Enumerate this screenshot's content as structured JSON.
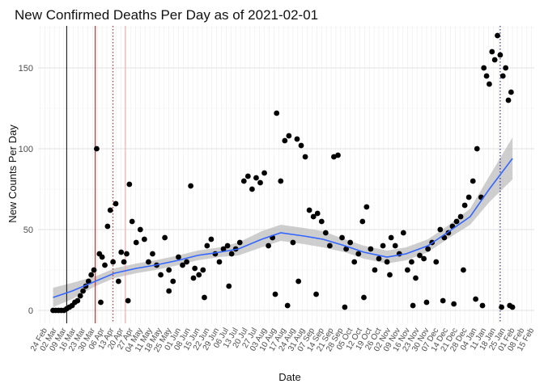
{
  "chart_data": {
    "type": "scatter",
    "title": "New Confirmed Deaths Per Day as of 2021-02-01",
    "xlabel": "Date",
    "ylabel": "New Counts Per Day",
    "x_range": [
      "2020-02-19",
      "2021-02-17"
    ],
    "ylim": [
      -8,
      176
    ],
    "y_ticks": [
      0,
      50,
      100,
      150
    ],
    "x_ticks": [
      "24 Feb",
      "02 Mar",
      "09 Mar",
      "16 Mar",
      "23 Mar",
      "30 Mar",
      "06 Apr",
      "13 Apr",
      "20 Apr",
      "27 Apr",
      "04 May",
      "11 May",
      "18 May",
      "25 May",
      "01 Jun",
      "08 Jun",
      "15 Jun",
      "22 Jun",
      "29 Jun",
      "06 Jul",
      "13 Jul",
      "20 Jul",
      "27 Jul",
      "03 Aug",
      "10 Aug",
      "17 Aug",
      "24 Aug",
      "31 Aug",
      "07 Sep",
      "14 Sep",
      "21 Sep",
      "28 Sep",
      "05 Oct",
      "12 Oct",
      "19 Oct",
      "26 Oct",
      "02 Nov",
      "09 Nov",
      "16 Nov",
      "23 Nov",
      "30 Nov",
      "07 Dec",
      "14 Dec",
      "21 Dec",
      "28 Dec",
      "04 Jan",
      "11 Jan",
      "18 Jan",
      "25 Jan",
      "01 Feb",
      "08 Feb",
      "15 Feb"
    ],
    "x_tick_dates": [
      "2020-02-24",
      "2020-03-02",
      "2020-03-09",
      "2020-03-16",
      "2020-03-23",
      "2020-03-30",
      "2020-04-06",
      "2020-04-13",
      "2020-04-20",
      "2020-04-27",
      "2020-05-04",
      "2020-05-11",
      "2020-05-18",
      "2020-05-25",
      "2020-06-01",
      "2020-06-08",
      "2020-06-15",
      "2020-06-22",
      "2020-06-29",
      "2020-07-06",
      "2020-07-13",
      "2020-07-20",
      "2020-07-27",
      "2020-08-03",
      "2020-08-10",
      "2020-08-17",
      "2020-08-24",
      "2020-08-31",
      "2020-09-07",
      "2020-09-14",
      "2020-09-21",
      "2020-09-28",
      "2020-10-05",
      "2020-10-12",
      "2020-10-19",
      "2020-10-26",
      "2020-11-02",
      "2020-11-09",
      "2020-11-16",
      "2020-11-23",
      "2020-11-30",
      "2020-12-07",
      "2020-12-14",
      "2020-12-21",
      "2020-12-28",
      "2021-01-04",
      "2021-01-11",
      "2021-01-18",
      "2021-01-25",
      "2021-02-01",
      "2021-02-08",
      "2021-02-15"
    ],
    "grid": true,
    "vertical_lines": [
      {
        "date": "2020-03-11",
        "color": "#000000",
        "style": "solid"
      },
      {
        "date": "2020-04-01",
        "color": "#cc0000",
        "style": "solid"
      },
      {
        "date": "2020-04-14",
        "color": "#cc0000",
        "style": "dotted"
      },
      {
        "date": "2020-04-23",
        "color": "#f4a6a6",
        "style": "solid"
      },
      {
        "date": "2021-01-23",
        "color": "#00008b",
        "style": "dotted"
      }
    ],
    "smooth": {
      "color": "#3366ff",
      "band_color": "#bebebe",
      "x": [
        "2020-03-01",
        "2020-03-15",
        "2020-04-01",
        "2020-04-15",
        "2020-05-01",
        "2020-05-15",
        "2020-06-01",
        "2020-06-15",
        "2020-07-01",
        "2020-07-15",
        "2020-08-01",
        "2020-08-15",
        "2020-09-01",
        "2020-09-15",
        "2020-10-01",
        "2020-10-15",
        "2020-11-01",
        "2020-11-15",
        "2020-12-01",
        "2020-12-15",
        "2021-01-01",
        "2021-01-15",
        "2021-02-01"
      ],
      "y": [
        8,
        12,
        18,
        23,
        26,
        28,
        31,
        34,
        36,
        38,
        44,
        48,
        46,
        44,
        40,
        36,
        33,
        35,
        40,
        48,
        58,
        75,
        94
      ],
      "lower": [
        2,
        7,
        15,
        20,
        23,
        25,
        28,
        31,
        33,
        34,
        39,
        43,
        41,
        39,
        36,
        32,
        29,
        31,
        36,
        44,
        53,
        67,
        81
      ],
      "upper": [
        14,
        17,
        21,
        26,
        29,
        31,
        34,
        37,
        39,
        42,
        49,
        53,
        51,
        49,
        44,
        40,
        37,
        39,
        44,
        52,
        63,
        83,
        107
      ]
    },
    "points": {
      "color": "#000000",
      "x": [
        "2020-03-01",
        "2020-03-03",
        "2020-03-05",
        "2020-03-07",
        "2020-03-09",
        "2020-03-11",
        "2020-03-13",
        "2020-03-15",
        "2020-03-17",
        "2020-03-19",
        "2020-03-21",
        "2020-03-23",
        "2020-03-25",
        "2020-03-27",
        "2020-03-29",
        "2020-03-31",
        "2020-04-02",
        "2020-04-04",
        "2020-04-06",
        "2020-04-08",
        "2020-04-10",
        "2020-04-12",
        "2020-04-14",
        "2020-04-16",
        "2020-04-18",
        "2020-04-20",
        "2020-04-22",
        "2020-04-24",
        "2020-04-26",
        "2020-04-28",
        "2020-05-01",
        "2020-05-04",
        "2020-05-07",
        "2020-05-10",
        "2020-05-13",
        "2020-05-16",
        "2020-05-19",
        "2020-05-22",
        "2020-05-25",
        "2020-05-28",
        "2020-06-01",
        "2020-06-04",
        "2020-06-07",
        "2020-06-10",
        "2020-06-13",
        "2020-06-16",
        "2020-06-19",
        "2020-06-22",
        "2020-06-25",
        "2020-06-28",
        "2020-07-01",
        "2020-07-04",
        "2020-07-07",
        "2020-07-10",
        "2020-07-13",
        "2020-07-16",
        "2020-07-19",
        "2020-07-22",
        "2020-07-25",
        "2020-07-28",
        "2020-07-31",
        "2020-08-03",
        "2020-08-06",
        "2020-08-09",
        "2020-08-12",
        "2020-08-15",
        "2020-08-18",
        "2020-08-21",
        "2020-08-24",
        "2020-08-27",
        "2020-08-30",
        "2020-09-02",
        "2020-09-05",
        "2020-09-08",
        "2020-09-11",
        "2020-09-14",
        "2020-09-17",
        "2020-09-20",
        "2020-09-23",
        "2020-09-26",
        "2020-09-29",
        "2020-10-02",
        "2020-10-05",
        "2020-10-08",
        "2020-10-11",
        "2020-10-14",
        "2020-10-17",
        "2020-10-20",
        "2020-10-23",
        "2020-10-26",
        "2020-10-29",
        "2020-11-01",
        "2020-11-04",
        "2020-11-07",
        "2020-11-10",
        "2020-11-13",
        "2020-11-16",
        "2020-11-19",
        "2020-11-22",
        "2020-11-25",
        "2020-11-28",
        "2020-12-01",
        "2020-12-04",
        "2020-12-07",
        "2020-12-10",
        "2020-12-13",
        "2020-12-16",
        "2020-12-19",
        "2020-12-22",
        "2020-12-25",
        "2020-12-28",
        "2020-12-31",
        "2021-01-03",
        "2021-01-06",
        "2021-01-09",
        "2021-01-11",
        "2021-01-13",
        "2021-01-15",
        "2021-01-17",
        "2021-01-19",
        "2021-01-21",
        "2021-01-23",
        "2021-01-25",
        "2021-01-27",
        "2021-01-29",
        "2021-01-31",
        "2021-02-01",
        "2020-04-05",
        "2020-04-25",
        "2020-06-20",
        "2020-08-11",
        "2020-08-20",
        "2020-10-01",
        "2020-11-20",
        "2020-12-20",
        "2021-01-10",
        "2021-01-24",
        "2021-01-30",
        "2020-05-25",
        "2020-07-08",
        "2020-09-10",
        "2020-10-15",
        "2020-11-30",
        "2020-12-12",
        "2021-01-05",
        "2020-06-12",
        "2020-08-28",
        "2020-11-03",
        "2020-12-27"
      ],
      "y": [
        0,
        0,
        0,
        0,
        0,
        1,
        2,
        3,
        5,
        6,
        9,
        12,
        15,
        18,
        22,
        25,
        100,
        35,
        33,
        28,
        52,
        62,
        30,
        66,
        18,
        36,
        30,
        35,
        78,
        55,
        42,
        50,
        44,
        30,
        35,
        28,
        22,
        45,
        25,
        18,
        33,
        28,
        30,
        77,
        26,
        22,
        25,
        40,
        44,
        35,
        30,
        38,
        40,
        35,
        38,
        42,
        80,
        83,
        75,
        82,
        79,
        85,
        40,
        45,
        122,
        80,
        105,
        108,
        42,
        106,
        102,
        95,
        62,
        58,
        60,
        55,
        48,
        40,
        95,
        96,
        45,
        38,
        42,
        30,
        35,
        55,
        64,
        38,
        25,
        32,
        40,
        30,
        45,
        40,
        35,
        48,
        25,
        30,
        20,
        34,
        32,
        38,
        42,
        30,
        50,
        45,
        48,
        52,
        55,
        58,
        65,
        70,
        80,
        100,
        70,
        150,
        145,
        140,
        160,
        155,
        170,
        158,
        145,
        150,
        130,
        135,
        2,
        5,
        6,
        8,
        10,
        3,
        2,
        3,
        4,
        3,
        2,
        3,
        12,
        15,
        10,
        8,
        5,
        6,
        7,
        20,
        18,
        22,
        25
      ]
    }
  }
}
